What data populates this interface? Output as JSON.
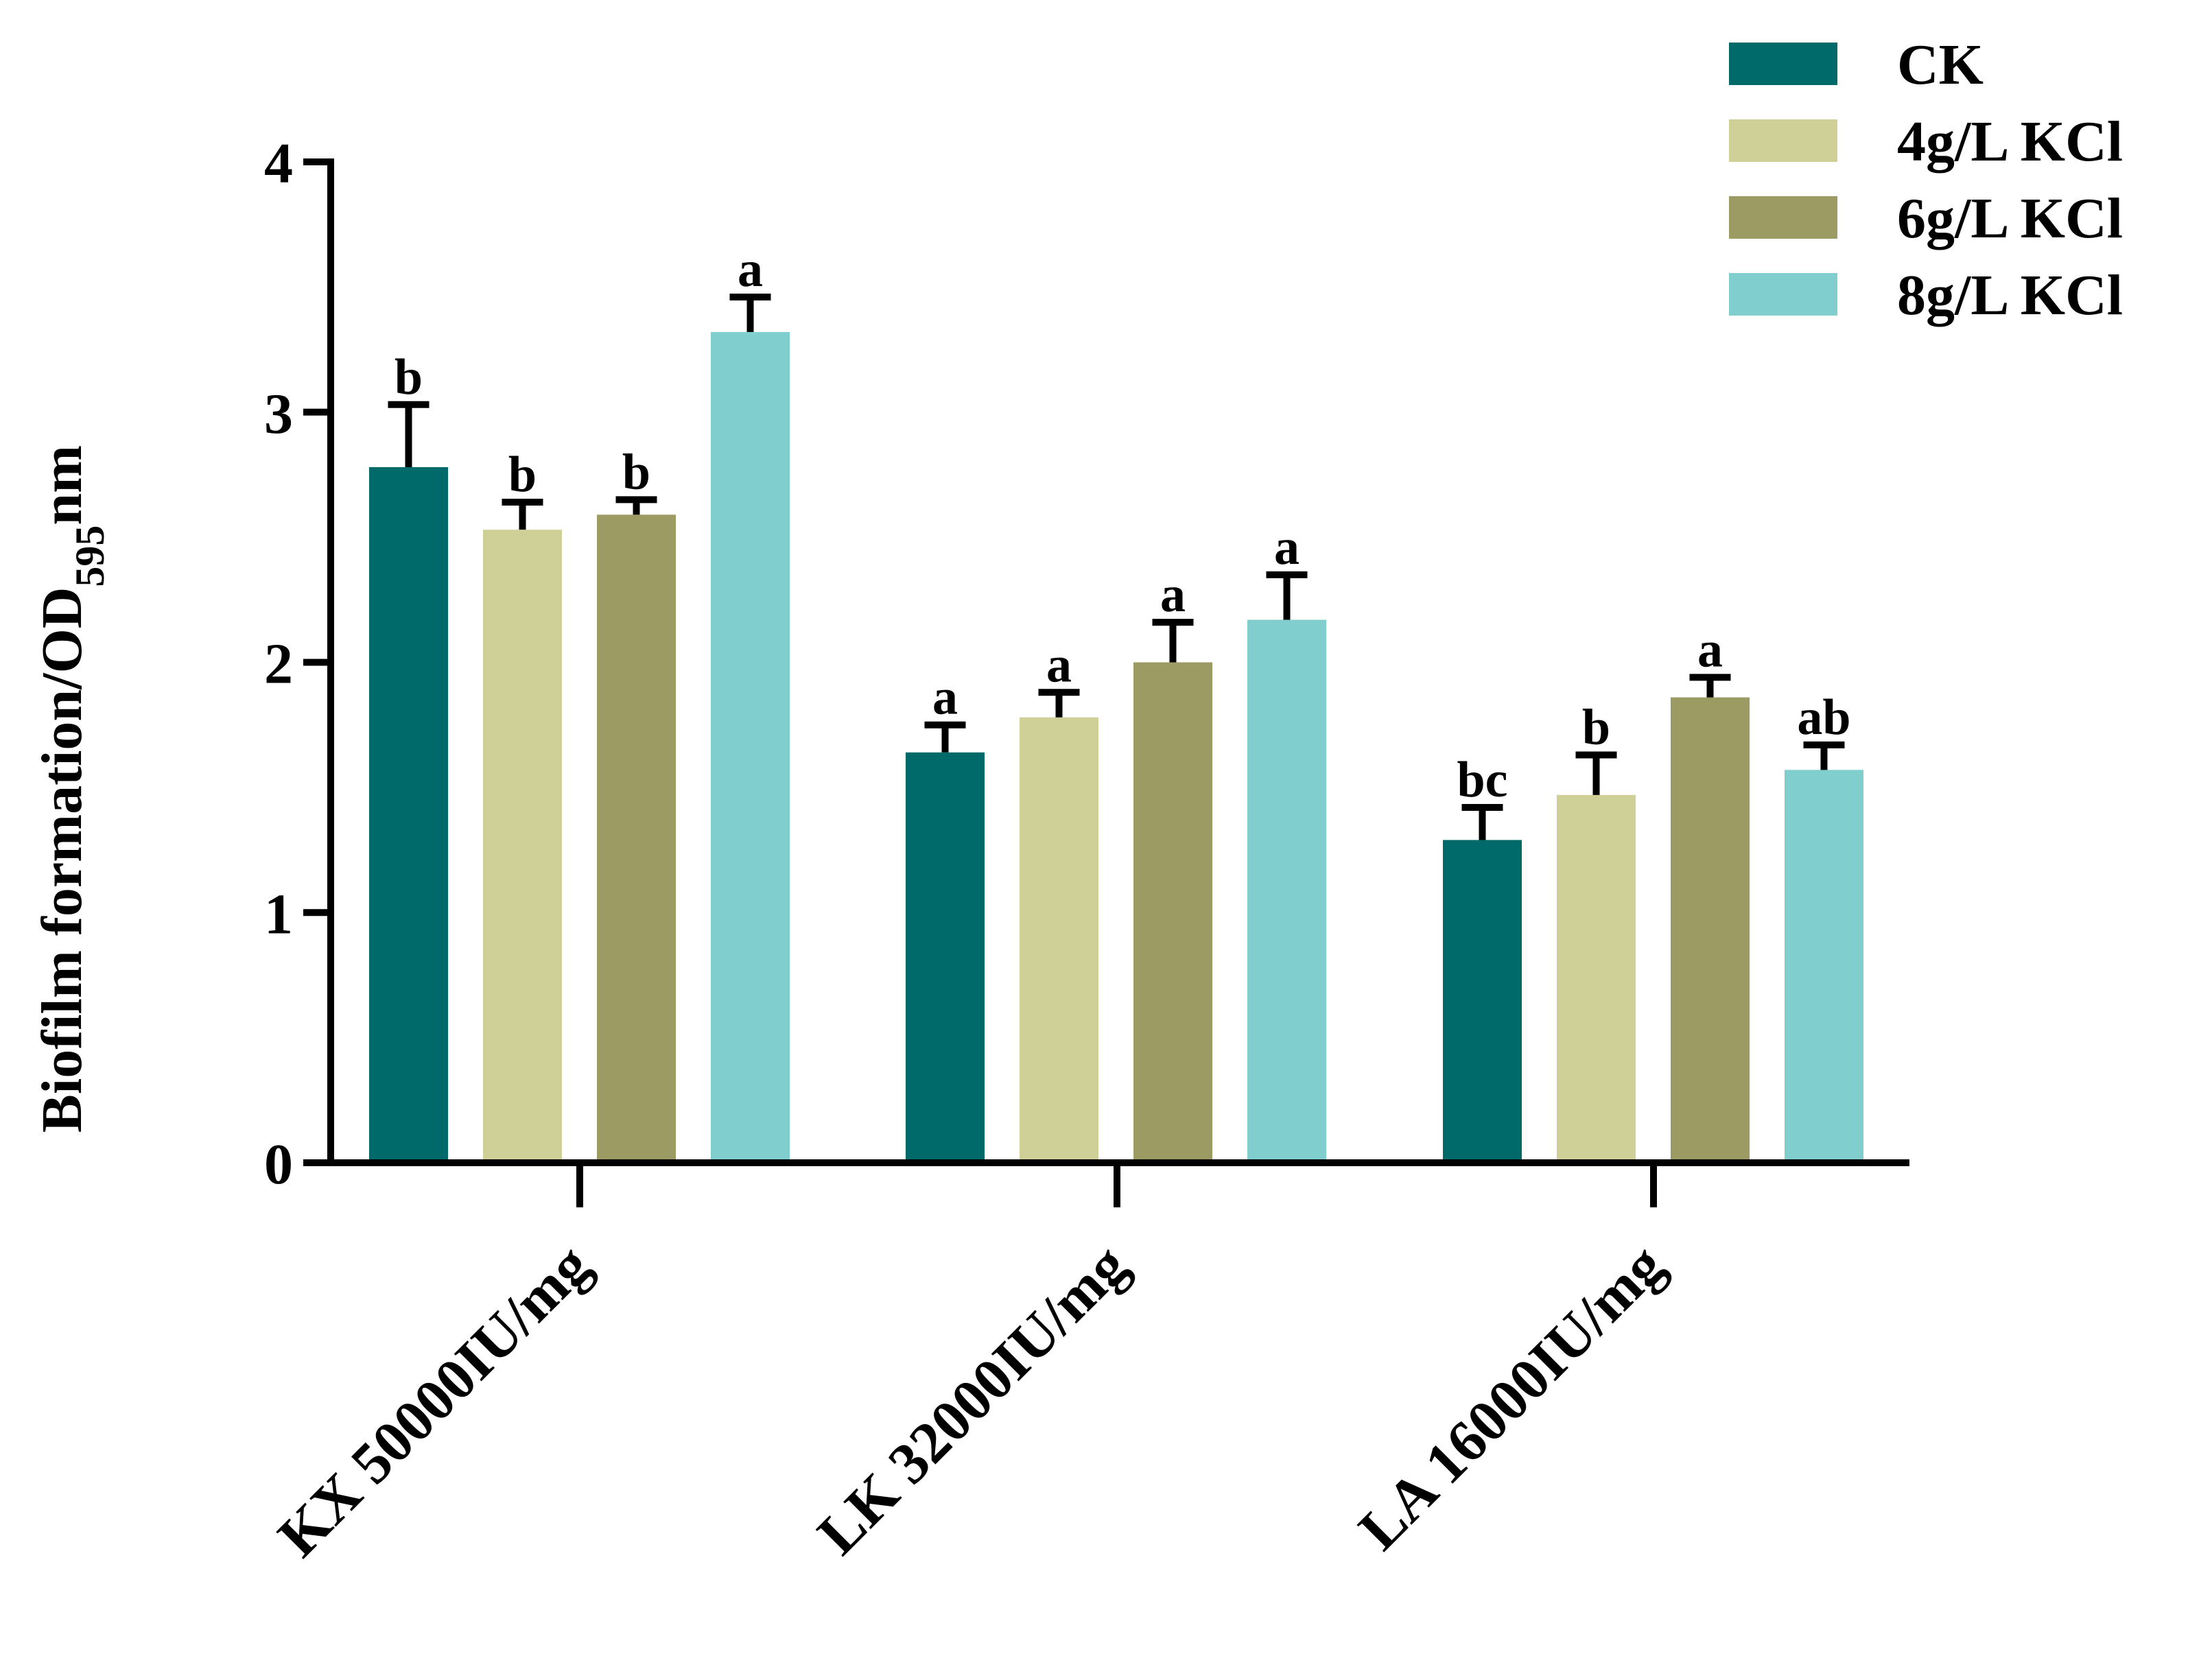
{
  "chart_data": {
    "type": "bar",
    "title": "",
    "xlabel": "",
    "ylabel": "Biofilm formation/OD",
    "ylabel_subscript": "595",
    "ylabel_suffix": "nm",
    "ylim": [
      0,
      4
    ],
    "yticks": [
      "0",
      "1",
      "2",
      "3",
      "4"
    ],
    "categories": [
      "KX 50000IU/mg",
      "LK 32000IU/mg",
      "LA 16000IU/mg"
    ],
    "legend_position": "top-right",
    "series": [
      {
        "name": "CK",
        "color": "#00696a",
        "values": [
          2.78,
          1.64,
          1.29
        ],
        "errors": [
          0.25,
          0.11,
          0.13
        ],
        "labels": [
          "b",
          "a",
          "bc"
        ]
      },
      {
        "name": "4g/L KCl",
        "color": "#cfcf98",
        "values": [
          2.53,
          1.78,
          1.47
        ],
        "errors": [
          0.11,
          0.1,
          0.16
        ],
        "labels": [
          "b",
          "a",
          "b"
        ]
      },
      {
        "name": "6g/L KCl",
        "color": "#9c9b63",
        "values": [
          2.59,
          2.0,
          1.86
        ],
        "errors": [
          0.06,
          0.16,
          0.08
        ],
        "labels": [
          "b",
          "a",
          "a"
        ]
      },
      {
        "name": "8g/L KCl",
        "color": "#80cece",
        "values": [
          3.32,
          2.17,
          1.57
        ],
        "errors": [
          0.14,
          0.18,
          0.1
        ],
        "labels": [
          "a",
          "a",
          "ab"
        ]
      }
    ]
  }
}
